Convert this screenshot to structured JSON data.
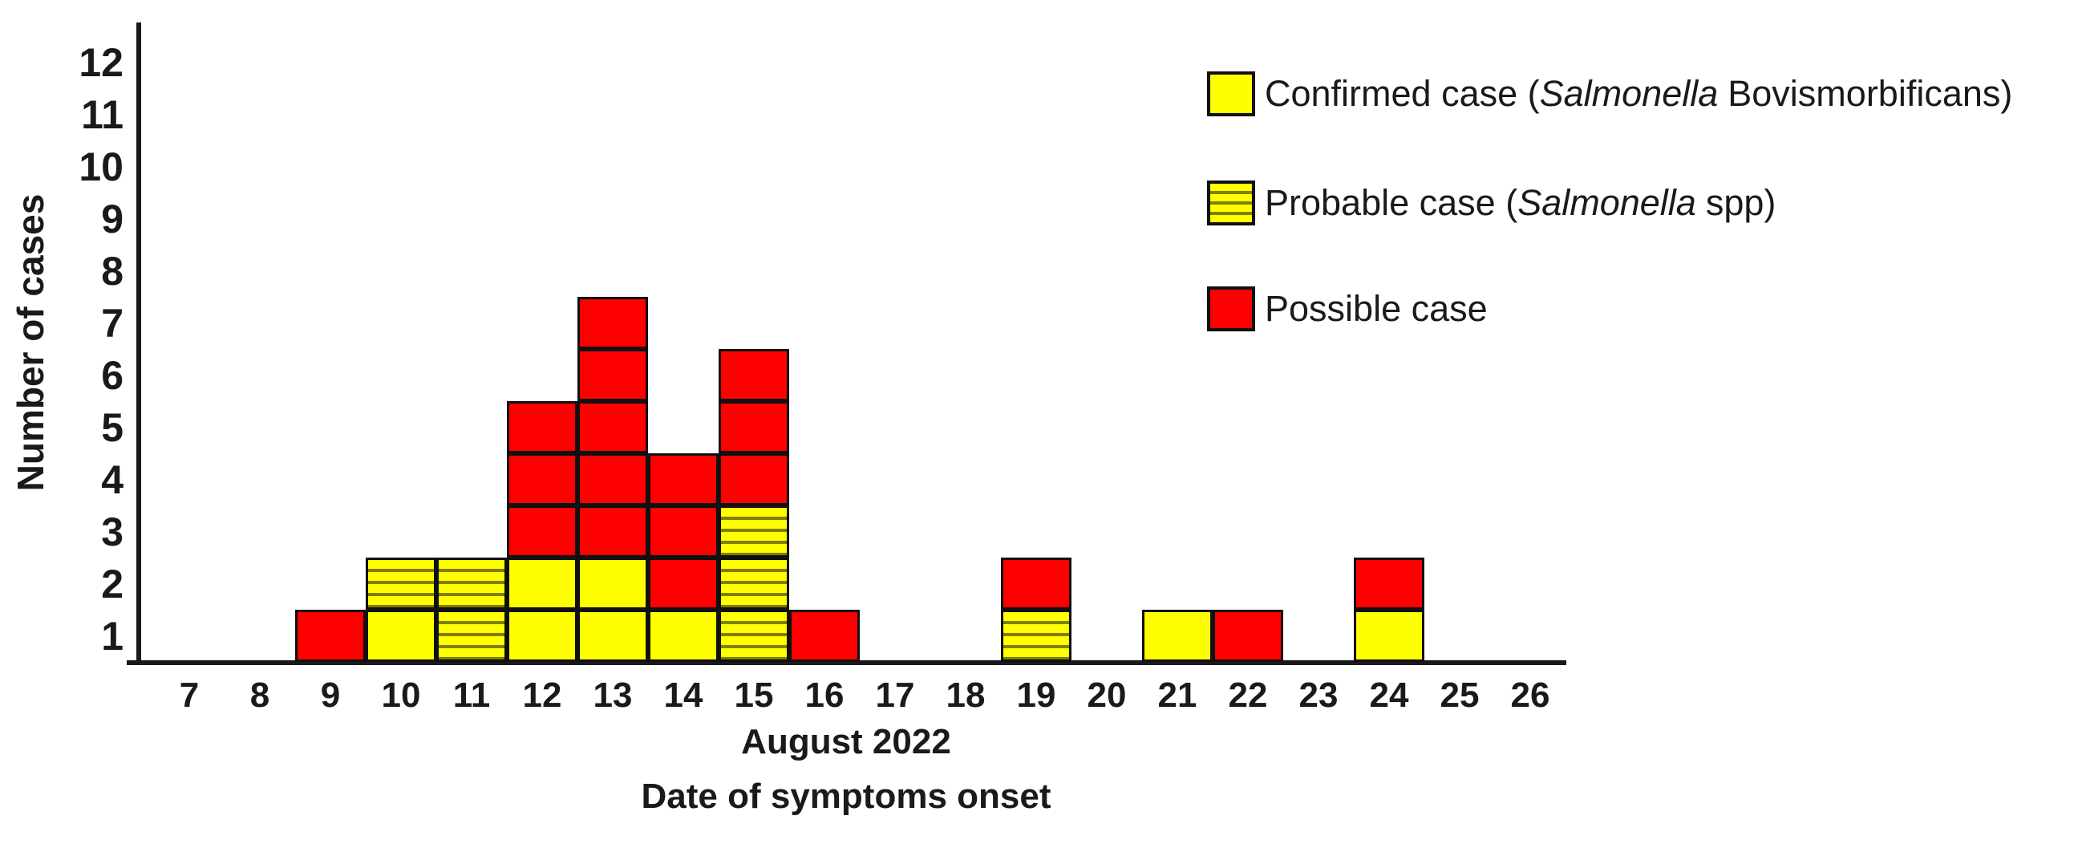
{
  "chart_data": {
    "type": "bar",
    "subtype": "stacked-unit-epidemic-curve",
    "title": "",
    "ylabel": "Number of cases",
    "xlabel_line1": "August 2022",
    "xlabel_line2": "Date of symptoms onset",
    "categories": [
      7,
      8,
      9,
      10,
      11,
      12,
      13,
      14,
      15,
      16,
      17,
      18,
      19,
      20,
      21,
      22,
      23,
      24,
      25,
      26
    ],
    "series": [
      {
        "name": "Confirmed case (Salmonella Bovismorbificans)",
        "key": "confirmed",
        "values": [
          0,
          0,
          0,
          1,
          0,
          2,
          2,
          1,
          0,
          0,
          0,
          0,
          0,
          0,
          1,
          0,
          0,
          1,
          0,
          0
        ]
      },
      {
        "name": "Probable case (Salmonella spp)",
        "key": "probable",
        "values": [
          0,
          0,
          0,
          1,
          2,
          0,
          0,
          0,
          3,
          0,
          0,
          0,
          1,
          0,
          0,
          0,
          0,
          0,
          0,
          0
        ]
      },
      {
        "name": "Possible case",
        "key": "possible",
        "values": [
          0,
          0,
          1,
          0,
          0,
          3,
          5,
          3,
          3,
          1,
          0,
          0,
          1,
          0,
          0,
          1,
          0,
          1,
          0,
          0
        ]
      }
    ],
    "stack_order_bottom_to_top": [
      "confirmed",
      "probable",
      "possible"
    ],
    "ylim": [
      0,
      12
    ],
    "yticks": [
      1,
      2,
      3,
      4,
      5,
      6,
      7,
      8,
      9,
      10,
      11,
      12
    ],
    "grid": false,
    "legend_position": "top-right",
    "legend": [
      {
        "prefix": "Confirmed case (",
        "italic": "Salmonella",
        "suffix": "Bovismorbificans)",
        "style": "confirmed"
      },
      {
        "prefix": "Probable case (",
        "italic": "Salmonella",
        "suffix": "spp)",
        "style": "probable"
      },
      {
        "prefix": "Possible case",
        "italic": "",
        "suffix": "",
        "style": "possible"
      }
    ],
    "colors": {
      "confirmed_fill": "#FFFF00",
      "probable_fill": "#FFFF00",
      "probable_hatch_line": "#7F7F00",
      "possible_fill": "#FE0000",
      "cell_border": "#101010",
      "axis": "#1A1A1A",
      "text": "#1A1A1A",
      "background": "#FFFFFF"
    }
  }
}
